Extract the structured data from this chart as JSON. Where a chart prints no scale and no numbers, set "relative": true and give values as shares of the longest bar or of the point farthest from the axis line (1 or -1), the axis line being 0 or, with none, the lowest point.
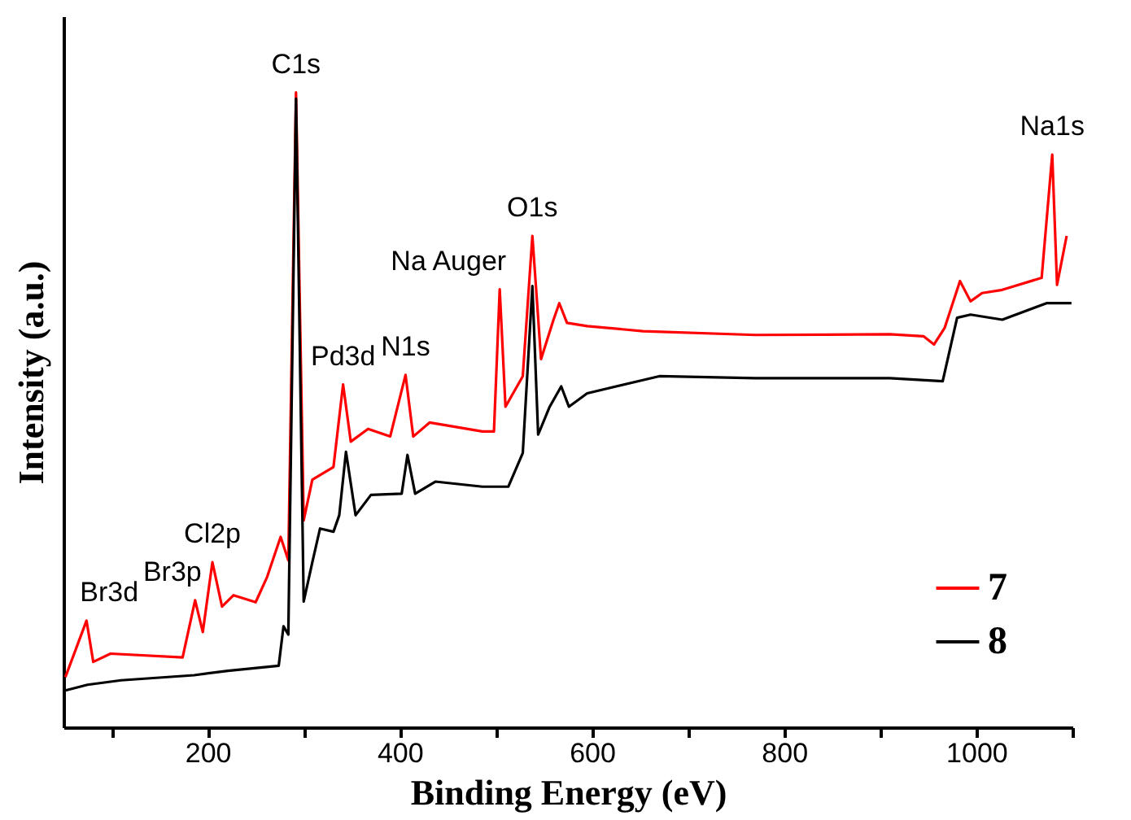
{
  "chart_data": {
    "type": "line",
    "relative": true,
    "xlabel": "Binding Energy (eV)",
    "ylabel": "Intensity (a.u.)",
    "xlim": [
      50,
      1100
    ],
    "xticks": [
      {
        "value": 100,
        "label": null
      },
      200,
      {
        "value": 300,
        "label": null
      },
      400,
      {
        "value": 500,
        "label": null
      },
      600,
      {
        "value": 700,
        "label": null
      },
      800,
      {
        "value": 900,
        "label": null
      },
      1000,
      {
        "value": 1100,
        "label": null
      }
    ],
    "grid": false,
    "legend": "bottom right",
    "line_style": "solid",
    "marker": "none",
    "series": [
      {
        "name": "7",
        "color": "#ff0000",
        "x": [
          52,
          74,
          81,
          99,
          174,
          187,
          195,
          205,
          215,
          227,
          250,
          262,
          276,
          284,
          292,
          300,
          309,
          331,
          341,
          349,
          367,
          390,
          406,
          414,
          431,
          486,
          498,
          504,
          510,
          528,
          538,
          547,
          560,
          566,
          574,
          595,
          653,
          770,
          910,
          945,
          956,
          967,
          983,
          994,
          1006,
          1027,
          1068,
          1079,
          1084,
          1094
        ],
        "values": [
          0.079,
          0.168,
          0.103,
          0.116,
          0.11,
          0.2,
          0.15,
          0.26,
          0.19,
          0.208,
          0.197,
          0.237,
          0.3,
          0.263,
          1.0,
          0.326,
          0.39,
          0.41,
          0.54,
          0.45,
          0.47,
          0.458,
          0.555,
          0.458,
          0.48,
          0.466,
          0.466,
          0.69,
          0.505,
          0.553,
          0.774,
          0.58,
          0.642,
          0.668,
          0.637,
          0.632,
          0.624,
          0.618,
          0.619,
          0.616,
          0.603,
          0.629,
          0.703,
          0.671,
          0.684,
          0.689,
          0.708,
          0.902,
          0.697,
          0.774
        ]
      },
      {
        "name": "8",
        "color": "#000000",
        "x": [
          52,
          75,
          110,
          186,
          221,
          274,
          279,
          284,
          292,
          300,
          309,
          317,
          331,
          337,
          344,
          354,
          370,
          402,
          408,
          416,
          437,
          486,
          513,
          528,
          538,
          544,
          556,
          568,
          576,
          595,
          670,
          770,
          910,
          965,
          980,
          994,
          1027,
          1073,
          1099
        ],
        "values": [
          0.058,
          0.067,
          0.074,
          0.082,
          0.089,
          0.097,
          0.159,
          0.146,
          0.99,
          0.198,
          0.26,
          0.313,
          0.308,
          0.334,
          0.434,
          0.334,
          0.366,
          0.368,
          0.429,
          0.368,
          0.387,
          0.379,
          0.379,
          0.432,
          0.695,
          0.461,
          0.505,
          0.537,
          0.505,
          0.526,
          0.553,
          0.55,
          0.55,
          0.545,
          0.645,
          0.65,
          0.642,
          0.668,
          0.668
        ]
      }
    ],
    "annotations": [
      {
        "text": "Br3d",
        "x": 74,
        "y": 0.168
      },
      {
        "text": "Br3p",
        "x": 187,
        "y": 0.2
      },
      {
        "text": "Cl2p",
        "x": 205,
        "y": 0.26
      },
      {
        "text": "C1s",
        "x": 292,
        "y": 1.0
      },
      {
        "text": "Pd3d",
        "x": 341,
        "y": 0.54
      },
      {
        "text": "N1s",
        "x": 406,
        "y": 0.555
      },
      {
        "text": "Na Auger",
        "x": 504,
        "y": 0.69
      },
      {
        "text": "O1s",
        "x": 538,
        "y": 0.774
      },
      {
        "text": "Na1s",
        "x": 1079,
        "y": 0.902
      }
    ]
  }
}
